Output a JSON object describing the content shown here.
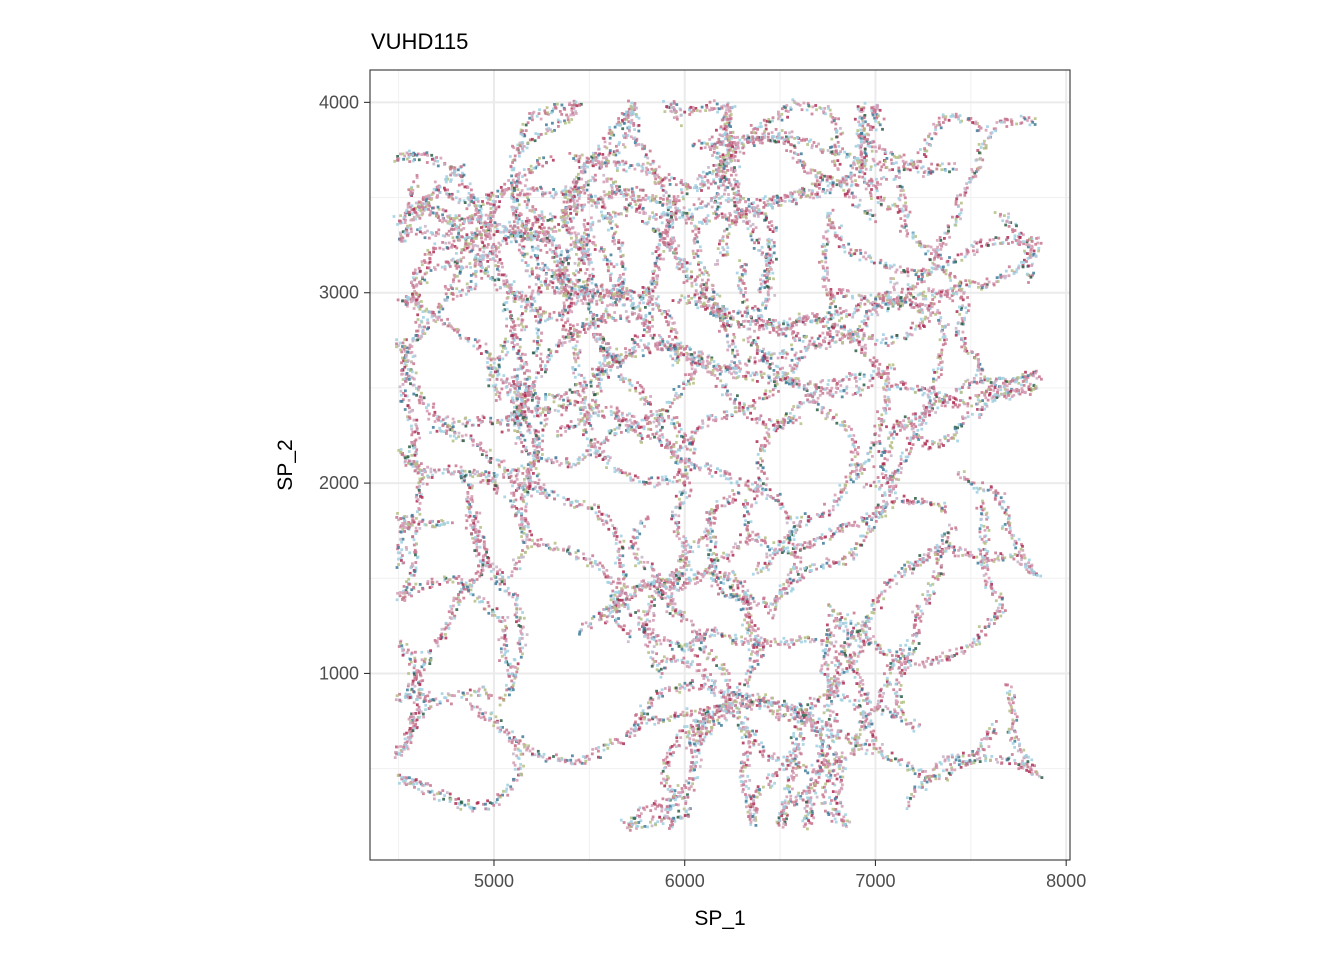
{
  "chart_data": {
    "type": "scatter",
    "title": "VUHD115",
    "xlabel": "SP_1",
    "ylabel": "SP_2",
    "xlim": [
      4350,
      8020
    ],
    "ylim": [
      20,
      4170
    ],
    "x_ticks": [
      5000,
      6000,
      7000,
      8000
    ],
    "x_tick_labels": [
      "5000",
      "6000",
      "7000",
      "8000"
    ],
    "y_ticks": [
      1000,
      2000,
      3000,
      4000
    ],
    "y_tick_labels": [
      "1000",
      "2000",
      "3000",
      "4000"
    ],
    "x_minor_gridlines": [
      4500,
      5500,
      6500,
      7500
    ],
    "y_minor_gridlines": [
      500,
      1500,
      2500,
      3500
    ],
    "grid": true,
    "legend": "none",
    "point_colors": [
      "#c8748d",
      "#d39cb4",
      "#9fd0e2",
      "#b4bf84",
      "#ae2d53",
      "#3f7d9b",
      "#2c5e45",
      "#c4b4c8"
    ],
    "x_range_of_points": [
      4500,
      7850
    ],
    "y_range_of_points": [
      200,
      3990
    ],
    "point_regions": [
      {
        "x": [
          4550,
          5150
        ],
        "y": [
          2000,
          3850
        ]
      },
      {
        "x": [
          5050,
          6550
        ],
        "y": [
          2950,
          3650
        ]
      },
      {
        "x": [
          6750,
          7850
        ],
        "y": [
          2000,
          3450
        ]
      },
      {
        "x": [
          4500,
          6000
        ],
        "y": [
          600,
          2000
        ]
      },
      {
        "x": [
          6000,
          7850
        ],
        "y": [
          250,
          1950
        ]
      },
      {
        "x": [
          5800,
          6650
        ],
        "y": [
          1700,
          2950
        ]
      }
    ]
  }
}
